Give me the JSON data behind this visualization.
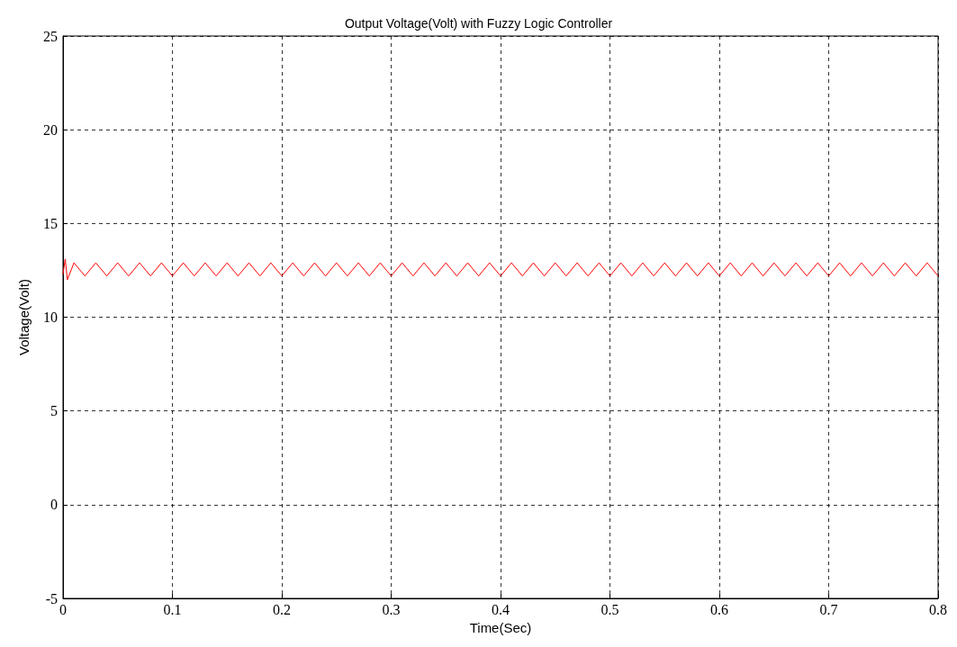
{
  "chart_data": {
    "type": "line",
    "title": "Output Voltage(Volt) with Fuzzy Logic Controller",
    "xlabel": "Time(Sec)",
    "ylabel": "Voltage(Volt)",
    "xlim": [
      0,
      0.8
    ],
    "xticks": [
      0,
      0.1,
      0.2,
      0.3,
      0.4,
      0.5,
      0.6,
      0.7,
      0.8
    ],
    "ylim": [
      -5,
      25
    ],
    "yticks": [
      -5,
      0,
      5,
      10,
      15,
      20,
      25
    ],
    "grid": true,
    "line_style": "solid",
    "marker": "none",
    "series": [
      {
        "color": "#ff0000",
        "x": [
          0,
          0.002,
          0.004,
          0.01,
          0.02,
          0.03,
          0.04,
          0.05,
          0.06,
          0.07,
          0.08,
          0.09,
          0.1,
          0.11,
          0.12,
          0.13,
          0.14,
          0.15,
          0.16,
          0.17,
          0.18,
          0.19,
          0.2,
          0.21,
          0.22,
          0.23,
          0.24,
          0.25,
          0.26,
          0.27,
          0.28,
          0.29,
          0.3,
          0.31,
          0.32,
          0.33,
          0.34,
          0.35,
          0.36,
          0.37,
          0.38,
          0.39,
          0.4,
          0.41,
          0.42,
          0.43,
          0.44,
          0.45,
          0.46,
          0.47,
          0.48,
          0.49,
          0.5,
          0.51,
          0.52,
          0.53,
          0.54,
          0.55,
          0.56,
          0.57,
          0.58,
          0.59,
          0.6,
          0.61,
          0.62,
          0.63,
          0.64,
          0.65,
          0.66,
          0.67,
          0.68,
          0.69,
          0.7,
          0.71,
          0.72,
          0.73,
          0.74,
          0.75,
          0.76,
          0.77,
          0.78,
          0.79,
          0.8
        ],
        "values": [
          12.3,
          13.1,
          12.0,
          12.9,
          12.2,
          12.9,
          12.2,
          12.9,
          12.2,
          12.9,
          12.2,
          12.9,
          12.2,
          12.9,
          12.2,
          12.9,
          12.2,
          12.9,
          12.2,
          12.9,
          12.2,
          12.9,
          12.2,
          12.9,
          12.2,
          12.9,
          12.2,
          12.9,
          12.2,
          12.9,
          12.2,
          12.9,
          12.2,
          12.9,
          12.2,
          12.9,
          12.2,
          12.9,
          12.2,
          12.9,
          12.2,
          12.9,
          12.2,
          12.9,
          12.2,
          12.9,
          12.2,
          12.9,
          12.2,
          12.9,
          12.2,
          12.9,
          12.2,
          12.9,
          12.2,
          12.9,
          12.2,
          12.9,
          12.2,
          12.9,
          12.2,
          12.9,
          12.2,
          12.9,
          12.2,
          12.9,
          12.2,
          12.9,
          12.2,
          12.9,
          12.2,
          12.9,
          12.2,
          12.9,
          12.2,
          12.9,
          12.2,
          12.9,
          12.2,
          12.9,
          12.2,
          12.9,
          12.2
        ]
      }
    ]
  }
}
